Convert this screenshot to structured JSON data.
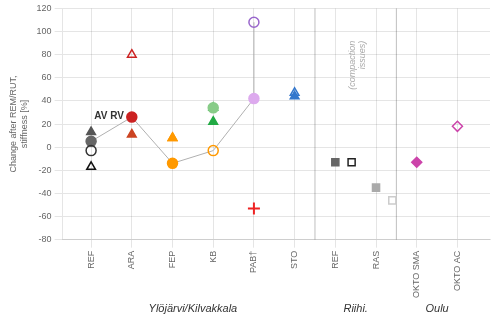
{
  "chart_data": {
    "type": "scatter",
    "ylabel": "Change after REM/RUT,\nstiffness [%]",
    "xlim": [
      0.3,
      10.8
    ],
    "xticks": [
      {
        "value": 1,
        "label": "REF"
      },
      {
        "value": 2,
        "label": "ARA"
      },
      {
        "value": 3,
        "label": "FEP"
      },
      {
        "value": 4,
        "label": "KB"
      },
      {
        "value": 5,
        "label": "PAB†"
      },
      {
        "value": 6,
        "label": "STO"
      },
      {
        "value": 7,
        "label": "REF"
      },
      {
        "value": 8,
        "label": "RAS"
      },
      {
        "value": 9,
        "label": "OKTO SMA"
      },
      {
        "value": 10,
        "label": "OKTO AC"
      }
    ],
    "ylim": [
      -80,
      120
    ],
    "yticks": [
      -80,
      -60,
      -40,
      -20,
      0,
      20,
      40,
      60,
      80,
      100,
      120
    ],
    "grid": true,
    "separators": [
      6.5,
      8.5
    ],
    "series": [
      {
        "type": "line",
        "color": "#b0b0b0",
        "x": [
          1,
          2,
          3,
          4,
          5
        ],
        "values": [
          5,
          26,
          -14,
          -3,
          42
        ]
      },
      {
        "type": "line",
        "color": "#b0b0b0",
        "x": [
          5,
          5
        ],
        "values": [
          42,
          108
        ]
      },
      {
        "type": "scatter",
        "marker": "circle",
        "color": "#666666",
        "x": [
          1
        ],
        "values": [
          5
        ]
      },
      {
        "type": "scatter",
        "marker": "triangle",
        "color": "#555555",
        "x": [
          1
        ],
        "values": [
          13
        ]
      },
      {
        "type": "scatter",
        "marker": "circle-open",
        "color": "#333333",
        "x": [
          1
        ],
        "values": [
          -3
        ]
      },
      {
        "type": "scatter",
        "marker": "triangle-open",
        "color": "#111111",
        "x": [
          1
        ],
        "values": [
          -17
        ]
      },
      {
        "type": "scatter",
        "marker": "circle",
        "color": "#cc2222",
        "x": [
          2
        ],
        "values": [
          26
        ]
      },
      {
        "type": "scatter",
        "marker": "triangle",
        "color": "#cc4422",
        "x": [
          2
        ],
        "values": [
          11
        ]
      },
      {
        "type": "scatter",
        "marker": "triangle-open",
        "color": "#cc2222",
        "x": [
          2
        ],
        "values": [
          80
        ]
      },
      {
        "type": "scatter",
        "marker": "circle",
        "color": "#ff9900",
        "x": [
          3
        ],
        "values": [
          -14
        ]
      },
      {
        "type": "scatter",
        "marker": "triangle",
        "color": "#ff9900",
        "x": [
          3
        ],
        "values": [
          8
        ]
      },
      {
        "type": "scatter",
        "marker": "triangle-open",
        "color": "#ff9900",
        "x": [
          3
        ],
        "values": [
          8
        ]
      },
      {
        "type": "scatter",
        "marker": "circle-open",
        "color": "#ff9900",
        "x": [
          4
        ],
        "values": [
          -3
        ]
      },
      {
        "type": "scatter",
        "marker": "triangle",
        "color": "#22aa44",
        "x": [
          4
        ],
        "values": [
          22
        ]
      },
      {
        "type": "scatter",
        "marker": "triangle-open",
        "color": "#22aa44",
        "x": [
          4
        ],
        "values": [
          34
        ]
      },
      {
        "type": "scatter",
        "marker": "circle",
        "color": "#88cc88",
        "x": [
          4
        ],
        "values": [
          34
        ]
      },
      {
        "type": "scatter",
        "marker": "circle",
        "color": "#ddaaee",
        "x": [
          5
        ],
        "values": [
          42
        ]
      },
      {
        "type": "scatter",
        "marker": "circle-open",
        "color": "#9966cc",
        "x": [
          5
        ],
        "values": [
          108
        ]
      },
      {
        "type": "scatter",
        "marker": "plus",
        "color": "#ee2222",
        "x": [
          5
        ],
        "values": [
          -53
        ]
      },
      {
        "type": "scatter",
        "marker": "triangle",
        "color": "#3377cc",
        "x": [
          6
        ],
        "values": [
          44
        ]
      },
      {
        "type": "scatter",
        "marker": "triangle-open",
        "color": "#3377cc",
        "x": [
          6
        ],
        "values": [
          47
        ]
      },
      {
        "type": "scatter",
        "marker": "square",
        "color": "#666666",
        "x": [
          7
        ],
        "values": [
          -13
        ]
      },
      {
        "type": "scatter",
        "marker": "square-open",
        "color": "#222222",
        "x": [
          7.4
        ],
        "values": [
          -13
        ]
      },
      {
        "type": "scatter",
        "marker": "square",
        "color": "#aaaaaa",
        "x": [
          8
        ],
        "values": [
          -35
        ]
      },
      {
        "type": "scatter",
        "marker": "square-open",
        "color": "#cccccc",
        "x": [
          8.4
        ],
        "values": [
          -46
        ]
      },
      {
        "type": "scatter",
        "marker": "diamond",
        "color": "#cc44aa",
        "x": [
          9
        ],
        "values": [
          -13
        ]
      },
      {
        "type": "scatter",
        "marker": "diamond-open",
        "color": "#cc44aa",
        "x": [
          10
        ],
        "values": [
          18
        ]
      }
    ],
    "annotations": [
      {
        "text": "AV RV",
        "x": 1.08,
        "y": 27,
        "color": "#333333"
      },
      {
        "text": "(compaction\nissues)",
        "x": 7.55,
        "y": 92,
        "color": "#aaaaaa"
      }
    ],
    "group_labels": [
      {
        "text": "Ylöjärvi/Kilvakkala",
        "x": 3.5
      },
      {
        "text": "Riihi.",
        "x": 7.5
      },
      {
        "text": "Oulu",
        "x": 9.5
      }
    ]
  }
}
